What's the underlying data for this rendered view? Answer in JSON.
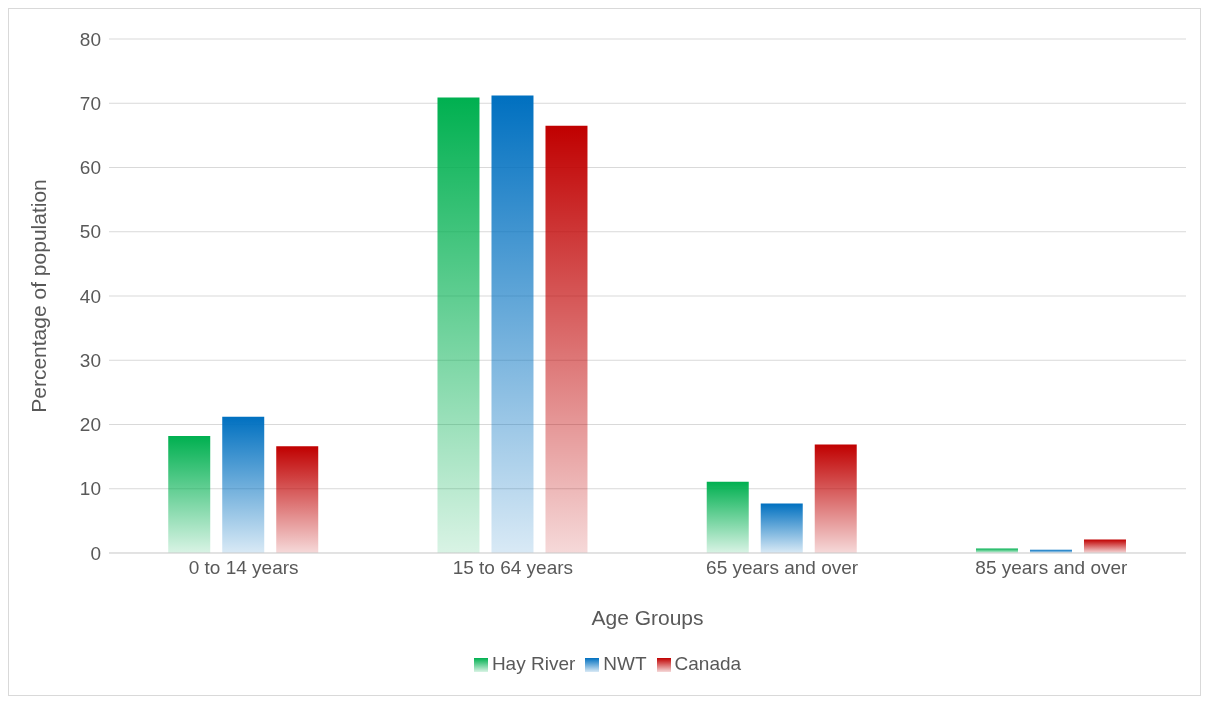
{
  "chart_data": {
    "type": "bar",
    "xlabel": "Age Groups",
    "ylabel": "Percentage of population",
    "categories": [
      "0 to 14 years",
      "15 to 64 years",
      "65 years and over",
      "85 years and over"
    ],
    "series": [
      {
        "name": "Hay River",
        "color": "#00b050",
        "values": [
          18.2,
          70.9,
          11.1,
          0.7
        ]
      },
      {
        "name": "NWT",
        "color": "#0070c0",
        "values": [
          21.2,
          71.2,
          7.7,
          0.5
        ]
      },
      {
        "name": "Canada",
        "color": "#c00000",
        "values": [
          16.6,
          66.5,
          16.9,
          2.1
        ]
      }
    ],
    "ylim": [
      0,
      80
    ],
    "yticks": [
      0,
      10,
      20,
      30,
      40,
      50,
      60,
      70,
      80
    ],
    "grid": "y",
    "legend": "bottom"
  }
}
